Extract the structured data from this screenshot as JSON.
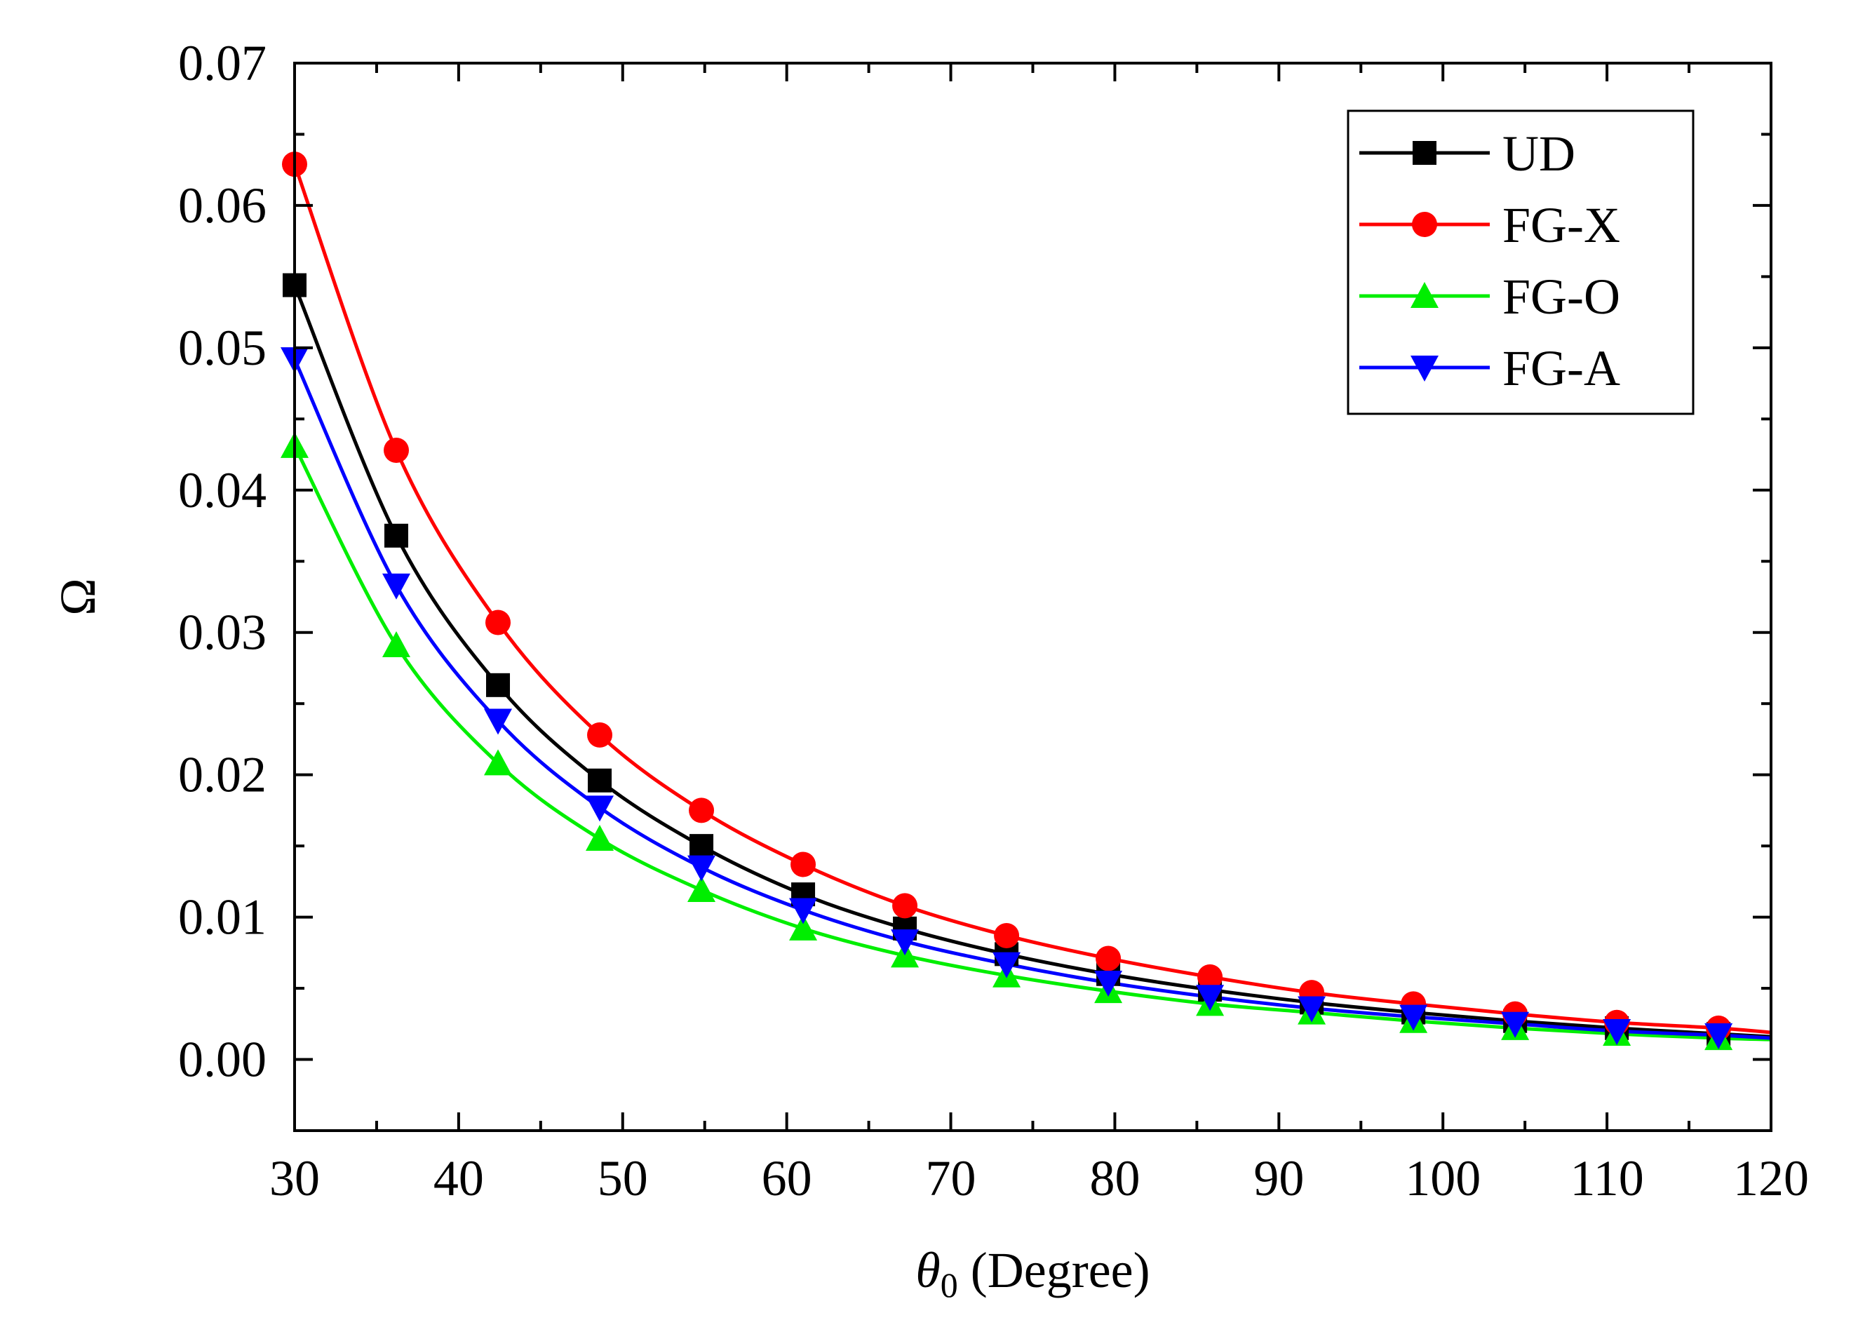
{
  "chart_data": {
    "type": "line",
    "title": "",
    "xlabel": {
      "symbol": "θ",
      "subscript": "0",
      "unit": " (Degree)"
    },
    "ylabel": "Ω",
    "xlim": [
      30,
      120
    ],
    "ylim": [
      -0.005,
      0.07
    ],
    "x_ticks": [
      30,
      40,
      50,
      60,
      70,
      80,
      90,
      100,
      110,
      120
    ],
    "x_tick_labels": [
      "30",
      "40",
      "50",
      "60",
      "70",
      "80",
      "90",
      "100",
      "110",
      "120"
    ],
    "y_ticks": [
      0.0,
      0.01,
      0.02,
      0.03,
      0.04,
      0.05,
      0.06,
      0.07
    ],
    "y_tick_labels": [
      "0.00",
      "0.01",
      "0.02",
      "0.03",
      "0.04",
      "0.05",
      "0.06",
      "0.07"
    ],
    "legend_position": "top-right",
    "grid": false,
    "x": [
      30,
      36.2,
      42.4,
      48.6,
      54.8,
      61,
      67.2,
      73.4,
      79.6,
      85.8,
      92,
      98.2,
      104.4,
      110.6,
      116.8,
      120
    ],
    "series": [
      {
        "name": "UD",
        "color": "#000000",
        "marker": "square",
        "values": [
          0.0544,
          0.0368,
          0.0263,
          0.0196,
          0.015,
          0.0116,
          0.0092,
          0.0074,
          0.006,
          0.0049,
          0.004,
          0.0033,
          0.0027,
          0.0022,
          0.0018,
          0.0016
        ]
      },
      {
        "name": "FG-X",
        "color": "#ff0000",
        "marker": "circle",
        "values": [
          0.0629,
          0.0428,
          0.0307,
          0.0228,
          0.0175,
          0.0137,
          0.0108,
          0.0087,
          0.0071,
          0.0058,
          0.0047,
          0.0039,
          0.0032,
          0.0026,
          0.0022,
          0.0019
        ]
      },
      {
        "name": "FG-O",
        "color": "#00ee00",
        "marker": "triangle-up",
        "values": [
          0.0431,
          0.0291,
          0.0208,
          0.0155,
          0.0119,
          0.0092,
          0.0073,
          0.0059,
          0.0048,
          0.0039,
          0.0033,
          0.0027,
          0.0022,
          0.0018,
          0.0015,
          0.0014
        ]
      },
      {
        "name": "FG-A",
        "color": "#0000ff",
        "marker": "triangle-down",
        "values": [
          0.0492,
          0.0333,
          0.0238,
          0.0177,
          0.0135,
          0.0105,
          0.0083,
          0.0067,
          0.0054,
          0.0044,
          0.0036,
          0.003,
          0.0025,
          0.002,
          0.0017,
          0.0015
        ]
      }
    ]
  }
}
